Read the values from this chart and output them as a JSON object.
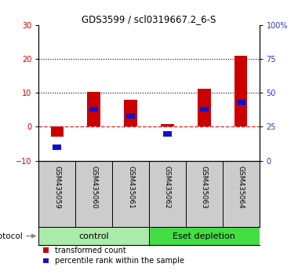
{
  "title": "GDS3599 / scl0319667.2_6-S",
  "categories": [
    "GSM435059",
    "GSM435060",
    "GSM435061",
    "GSM435062",
    "GSM435063",
    "GSM435064"
  ],
  "red_values": [
    -3.0,
    10.2,
    8.0,
    0.8,
    11.2,
    21.0
  ],
  "blue_values_pct": [
    10.0,
    38.0,
    33.0,
    20.0,
    38.0,
    43.0
  ],
  "groups": [
    {
      "label": "control",
      "indices": [
        0,
        1,
        2
      ],
      "color": "#aaeaaa"
    },
    {
      "label": "Eset depletion",
      "indices": [
        3,
        4,
        5
      ],
      "color": "#44dd44"
    }
  ],
  "ylim_left": [
    -10,
    30
  ],
  "ylim_right": [
    0,
    100
  ],
  "yticks_left": [
    -10,
    0,
    10,
    20,
    30
  ],
  "yticks_right": [
    0,
    25,
    50,
    75,
    100
  ],
  "ytick_labels_right": [
    "0",
    "25",
    "50",
    "75",
    "100%"
  ],
  "bar_color_red": "#cc0000",
  "bar_color_blue": "#1111cc",
  "bar_width": 0.35,
  "blue_square_size": 0.12,
  "background_color": "#ffffff",
  "plot_bg_color": "#ffffff",
  "tick_label_color_left": "#cc0000",
  "tick_label_color_right": "#3333cc",
  "xlabel_area_color": "#cccccc",
  "protocol_label": "protocol",
  "legend_red": "transformed count",
  "legend_blue": "percentile rank within the sample"
}
